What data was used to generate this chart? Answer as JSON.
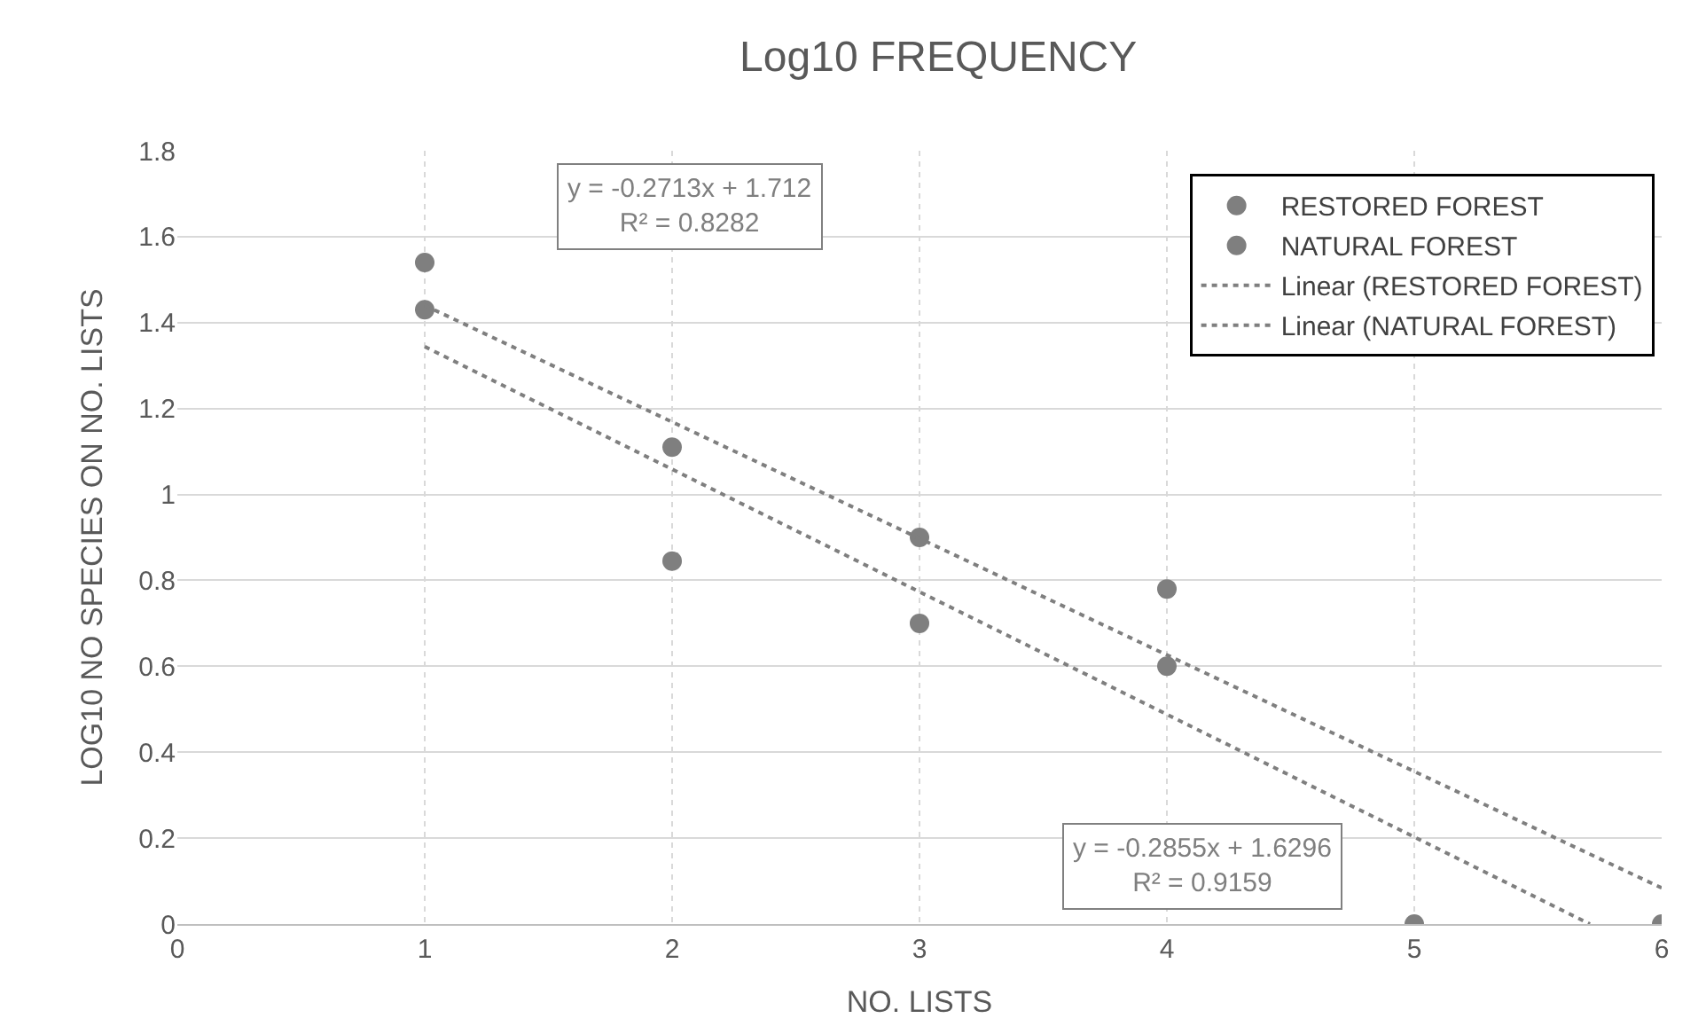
{
  "chart_data": {
    "type": "scatter",
    "title": "Log10 FREQUENCY",
    "xlabel": "NO. LISTS",
    "ylabel": "LOG10 NO SPECIES ON NO. LISTS",
    "series": [
      {
        "name": "RESTORED FOREST",
        "color": "#7f7f7f",
        "x": [
          1,
          2,
          3,
          4,
          6
        ],
        "values": [
          1.54,
          1.11,
          0.9,
          0.78,
          0
        ],
        "marker": "circle"
      },
      {
        "name": "NATURAL FOREST",
        "color": "#7f7f7f",
        "x": [
          1,
          2,
          3,
          4,
          5
        ],
        "values": [
          1.43,
          0.845,
          0.7,
          0.6,
          0
        ],
        "marker": "circle"
      },
      {
        "name": "Linear (RESTORED FOREST)",
        "type": "line",
        "color": "#7f7f7f",
        "x": [
          1,
          6
        ],
        "values": [
          1.44,
          0.084
        ],
        "marker": "none",
        "line_style": "dotted"
      },
      {
        "name": "Linear (NATURAL FOREST)",
        "type": "line",
        "color": "#7f7f7f",
        "x": [
          1,
          5.71
        ],
        "values": [
          1.344,
          0
        ],
        "marker": "none",
        "line_style": "dotted"
      }
    ],
    "annotations": [
      "y = -0.2713x + 1.712\nR² = 0.8282",
      "y = -0.2855x + 1.6296\nR² = 0.9159"
    ],
    "xlim": [
      0,
      6
    ],
    "xticks": [
      0,
      1,
      2,
      3,
      4,
      5,
      6
    ],
    "ylim": [
      0,
      1.8
    ],
    "yticks": [
      0,
      0.2,
      0.4,
      0.6,
      0.8,
      1,
      1.2,
      1.4,
      1.6,
      1.8
    ],
    "grid": true,
    "legend": "top right"
  }
}
